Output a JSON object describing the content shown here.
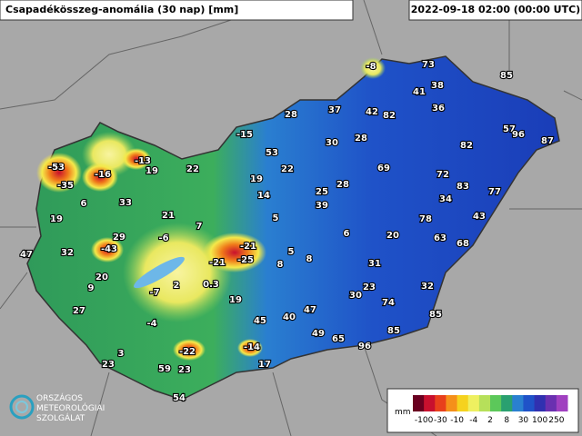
{
  "header": {
    "title": "Csapadékösszeg-anomália (30 nap) [mm]",
    "timestamp": "2022-09-18 02:00 (00:00 UTC)"
  },
  "stations": [
    -8,
    73,
    85,
    41,
    38,
    28,
    37,
    42,
    82,
    36,
    57,
    96,
    87,
    -15,
    53,
    30,
    28,
    82,
    -53,
    -16,
    -13,
    19,
    22,
    69,
    72,
    83,
    77,
    -35,
    6,
    33,
    19,
    22,
    25,
    28,
    14,
    39,
    34,
    43,
    19,
    21,
    7,
    5,
    78,
    6,
    20,
    63,
    68,
    47,
    32,
    -43,
    29,
    -6,
    -21,
    5,
    -21,
    -25,
    8,
    8,
    31,
    20,
    9,
    -7,
    2,
    0.3,
    19,
    23,
    30,
    32,
    74,
    27,
    47,
    40,
    45,
    85,
    -4,
    49,
    65,
    85,
    96,
    3,
    -22,
    -14,
    23,
    59,
    23,
    17,
    54
  ],
  "legend": {
    "unit": "mm",
    "ticks": [
      -100,
      -30,
      -10,
      -4,
      2,
      8,
      30,
      100,
      250
    ]
  },
  "logo": {
    "lines": [
      "ORSZÁGOS",
      "METEOROLÓGIAI",
      "SZOLGÁLAT"
    ]
  }
}
